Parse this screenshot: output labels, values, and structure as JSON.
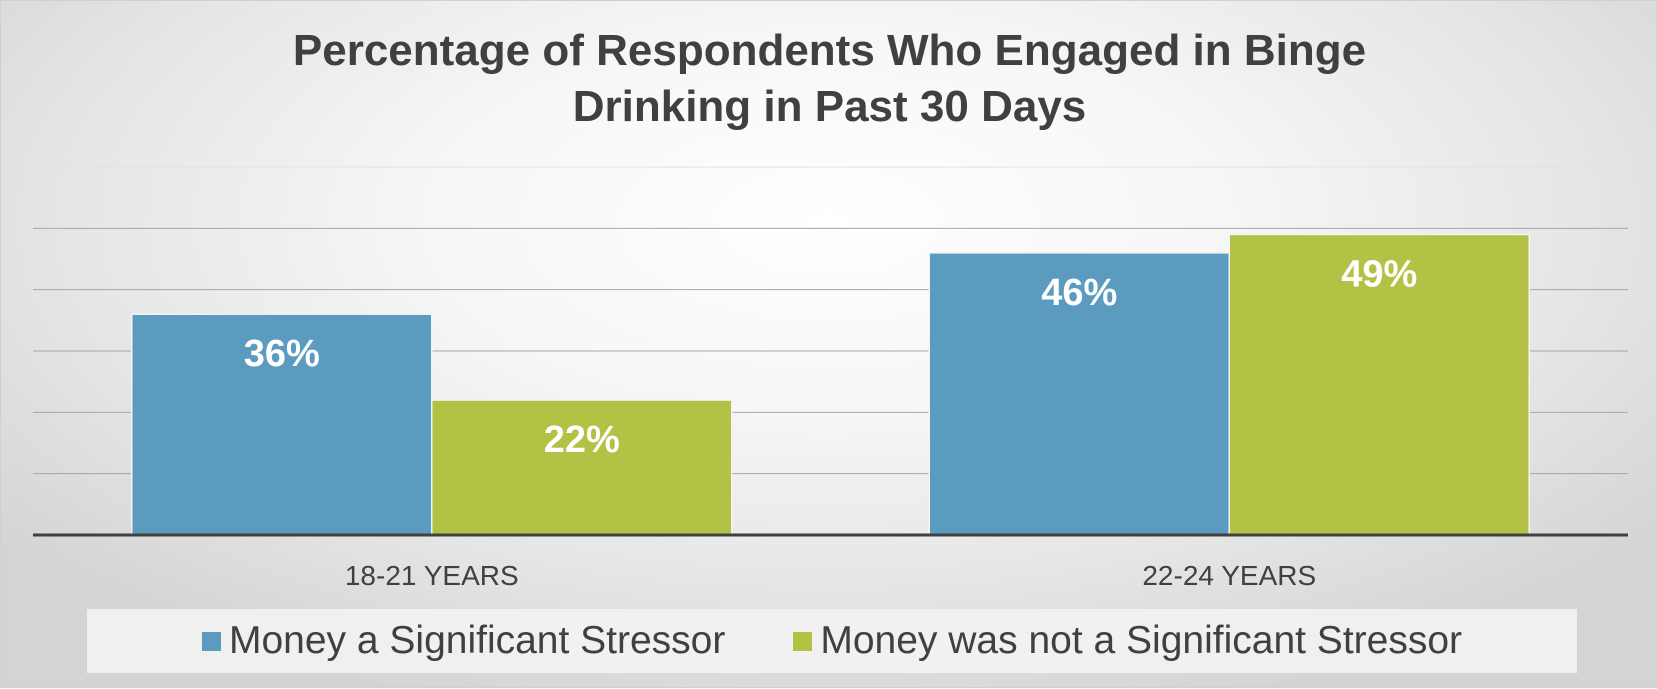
{
  "chart_data": {
    "type": "bar",
    "title_lines": [
      "Percentage of Respondents Who Engaged in Binge",
      "Drinking in Past 30 Days"
    ],
    "categories": [
      "18-21 YEARS",
      "22-24 YEARS"
    ],
    "series": [
      {
        "name": "Money a Significant Stressor",
        "values": [
          36,
          46
        ],
        "labels": [
          "36%",
          "46%"
        ],
        "color": "#5b9bc0"
      },
      {
        "name": "Money was not a Significant Stressor",
        "values": [
          22,
          49
        ],
        "labels": [
          "22%",
          "49%"
        ],
        "color": "#b3c244"
      }
    ],
    "ylim": [
      0,
      60
    ],
    "grid": true,
    "legend_position": "bottom",
    "axis_color": "#404040",
    "gridline_color": "#a6a6a6"
  }
}
